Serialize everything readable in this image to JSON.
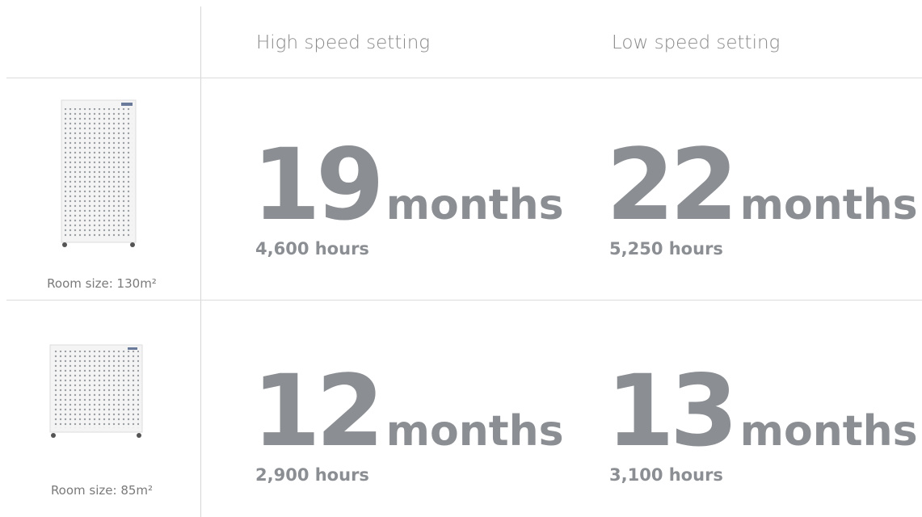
{
  "header": {
    "columns": [
      "High speed setting",
      "Low speed setting"
    ]
  },
  "rows": [
    {
      "room_size": "Room size: 130m²",
      "cells": [
        {
          "number": "19",
          "unit": "months",
          "hours": "4,600 hours"
        },
        {
          "number": "22",
          "unit": "months",
          "hours": "5,250 hours"
        }
      ]
    },
    {
      "room_size": "Room size: 85m²",
      "cells": [
        {
          "number": "12",
          "unit": "months",
          "hours": "2,900 hours"
        },
        {
          "number": "13",
          "unit": "months",
          "hours": "3,100 hours"
        }
      ]
    }
  ]
}
